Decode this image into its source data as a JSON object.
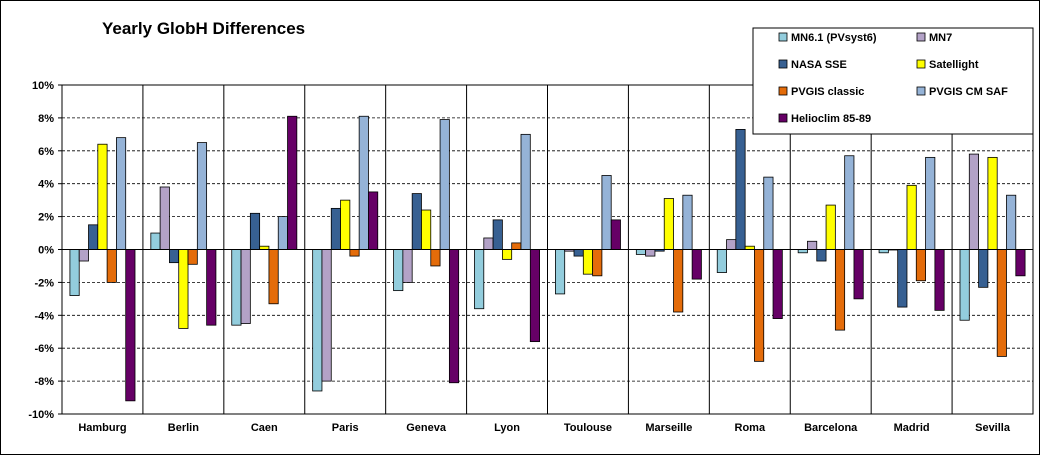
{
  "chart_data": {
    "type": "bar",
    "title": "Yearly GlobH Differences",
    "xlabel": "",
    "ylabel": "",
    "ylim": [
      -10,
      10
    ],
    "y_ticks": [
      "-10%",
      "-8%",
      "-6%",
      "-4%",
      "-2%",
      "0%",
      "2%",
      "4%",
      "6%",
      "8%",
      "10%"
    ],
    "grid": true,
    "legend_position": "top-right",
    "categories": [
      "Hamburg",
      "Berlin",
      "Caen",
      "Paris",
      "Geneva",
      "Lyon",
      "Toulouse",
      "Marseille",
      "Roma",
      "Barcelona",
      "Madrid",
      "Sevilla"
    ],
    "series": [
      {
        "name": "MN6.1 (PVsyst6)",
        "color": "#93CDDD",
        "values": [
          -2.8,
          1.0,
          -4.6,
          -8.6,
          -2.5,
          -3.6,
          -2.7,
          -0.3,
          -1.4,
          -0.2,
          -0.2,
          -4.3
        ]
      },
      {
        "name": "MN7",
        "color": "#B3A2C7",
        "values": [
          -0.7,
          3.8,
          -4.5,
          -8.0,
          -2.0,
          0.7,
          -0.1,
          -0.4,
          0.6,
          0.5,
          0.0,
          5.8
        ]
      },
      {
        "name": "NASA SSE",
        "color": "#376092",
        "values": [
          1.5,
          -0.8,
          2.2,
          2.5,
          3.4,
          1.8,
          -0.4,
          -0.1,
          7.3,
          -0.7,
          -3.5,
          -2.3
        ]
      },
      {
        "name": "Satellight",
        "color": "#FFFF00",
        "values": [
          6.4,
          -4.8,
          0.2,
          3.0,
          2.4,
          -0.6,
          -1.5,
          3.1,
          0.2,
          2.7,
          3.9,
          5.6
        ]
      },
      {
        "name": "PVGIS classic",
        "color": "#E46C0A",
        "values": [
          -2.0,
          -0.9,
          -3.3,
          -0.4,
          -1.0,
          0.4,
          -1.6,
          -3.8,
          -6.8,
          -4.9,
          -1.9,
          -6.5
        ]
      },
      {
        "name": "PVGIS CM SAF",
        "color": "#95B3D7",
        "values": [
          6.8,
          6.5,
          2.0,
          8.1,
          7.9,
          7.0,
          4.5,
          3.3,
          4.4,
          5.7,
          5.6,
          3.3
        ]
      },
      {
        "name": "Helioclim 85-89",
        "color": "#660066",
        "values": [
          -9.2,
          -4.6,
          8.1,
          3.5,
          -8.1,
          -5.6,
          1.8,
          -1.8,
          -4.2,
          -3.0,
          -3.7,
          -1.6
        ]
      }
    ]
  }
}
